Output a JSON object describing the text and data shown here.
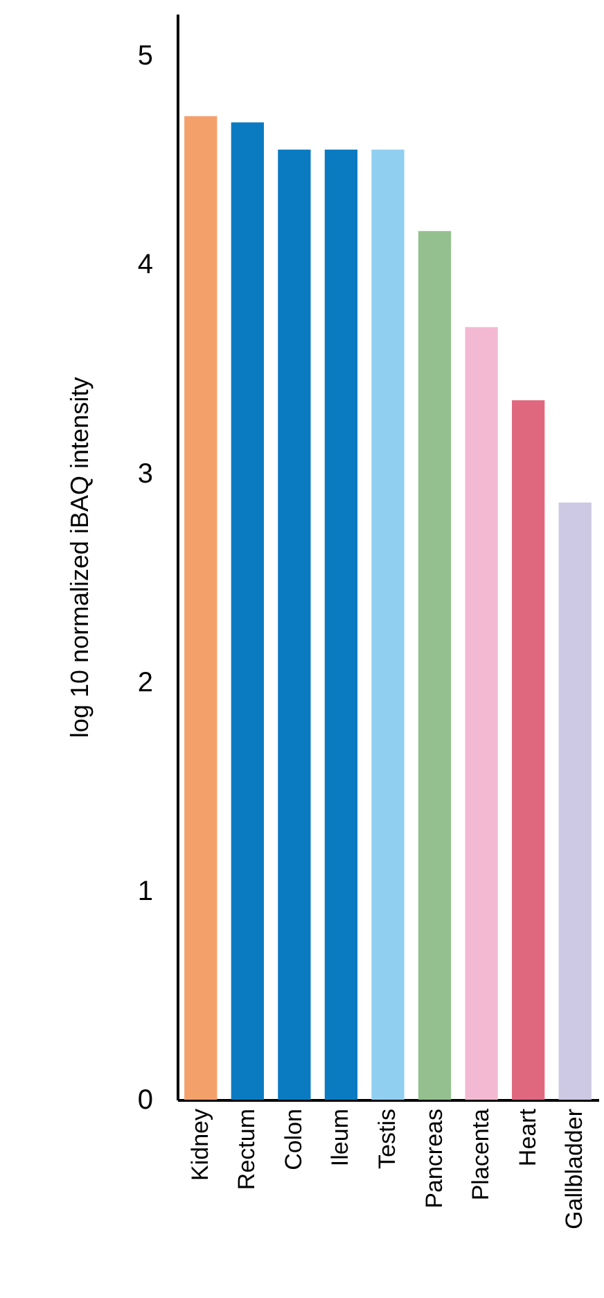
{
  "chart_data": {
    "type": "bar",
    "ylabel": "log 10 normalized iBAQ intensity",
    "categories": [
      "Kidney",
      "Rectum",
      "Colon",
      "Ileum",
      "Testis",
      "Pancreas",
      "Placenta",
      "Heart",
      "Gallbladder"
    ],
    "values": [
      4.71,
      4.68,
      4.55,
      4.55,
      4.55,
      4.16,
      3.7,
      3.35,
      2.86
    ],
    "colors": [
      "#f4a06a",
      "#0a7bc1",
      "#0a7bc1",
      "#0a7bc1",
      "#90cff0",
      "#93c08e",
      "#f3b9d3",
      "#e0687e",
      "#cdc8e3"
    ],
    "ylim": [
      0,
      5.2
    ],
    "yticks": [
      0,
      1,
      2,
      3,
      4,
      5
    ],
    "grid": false
  }
}
